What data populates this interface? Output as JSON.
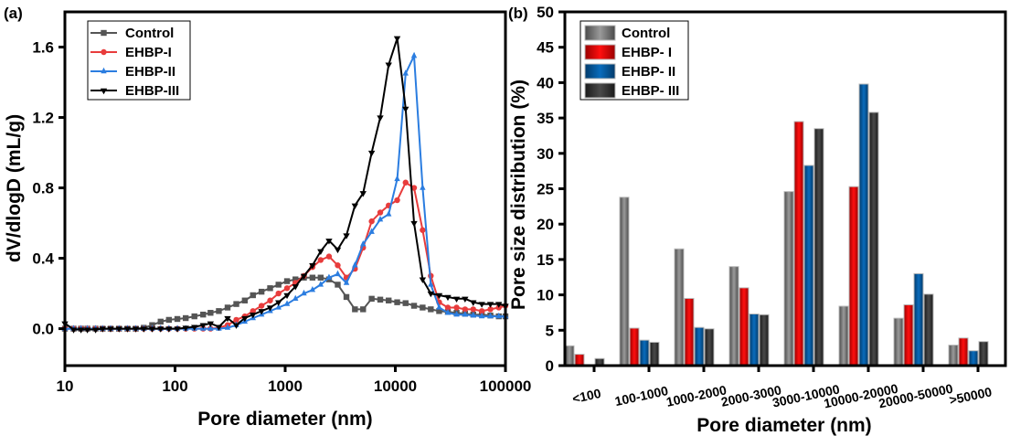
{
  "chart_data": [
    {
      "type": "line",
      "panel_label": "(a)",
      "xlabel": "Pore diameter (nm)",
      "ylabel": "dV/dlogD (mL/g)",
      "xscale": "log",
      "xlim": [
        10,
        100000
      ],
      "ylim": [
        -0.21,
        1.8
      ],
      "xticks": [
        10,
        100,
        1000,
        10000,
        100000
      ],
      "xtick_labels": [
        "10",
        "100",
        "1000",
        "10000",
        "100000"
      ],
      "yticks": [
        0.0,
        0.4,
        0.8,
        1.2,
        1.6
      ],
      "ytick_labels": [
        "0.0",
        "0.4",
        "0.8",
        "1.2",
        "1.6"
      ],
      "legend_position": "top-left",
      "series": [
        {
          "name": "Control",
          "color": "#555555",
          "marker": "square",
          "x": [
            10,
            12,
            14,
            16,
            19,
            22,
            26,
            31,
            37,
            44,
            52,
            62,
            74,
            88,
            105,
            125,
            150,
            180,
            210,
            250,
            300,
            360,
            430,
            510,
            610,
            730,
            870,
            1040,
            1240,
            1480,
            1770,
            2100,
            2500,
            3000,
            3600,
            4300,
            5100,
            6100,
            7300,
            8700,
            10400,
            12400,
            14800,
            17700,
            21000,
            25000,
            30000,
            36000,
            43000,
            51000,
            61000,
            73000,
            87000,
            100000
          ],
          "y": [
            0.0,
            0.0,
            0.0,
            0.0,
            0.0,
            0.0,
            0.0,
            0.0,
            0.0,
            0.0,
            0.005,
            0.02,
            0.04,
            0.05,
            0.055,
            0.06,
            0.07,
            0.08,
            0.09,
            0.1,
            0.12,
            0.14,
            0.16,
            0.19,
            0.21,
            0.23,
            0.25,
            0.27,
            0.28,
            0.29,
            0.29,
            0.29,
            0.28,
            0.25,
            0.18,
            0.11,
            0.11,
            0.17,
            0.165,
            0.16,
            0.15,
            0.145,
            0.13,
            0.12,
            0.11,
            0.1,
            0.095,
            0.09,
            0.085,
            0.08,
            0.08,
            0.075,
            0.07,
            0.07
          ]
        },
        {
          "name": "EHBP-I",
          "color": "#e83c3c",
          "marker": "circle",
          "x": [
            10,
            12,
            14,
            16,
            19,
            22,
            26,
            31,
            37,
            44,
            52,
            62,
            74,
            88,
            105,
            125,
            150,
            180,
            210,
            250,
            300,
            360,
            430,
            510,
            610,
            730,
            870,
            1040,
            1240,
            1480,
            1770,
            2100,
            2500,
            3000,
            3600,
            4300,
            5100,
            6100,
            7300,
            8700,
            10400,
            12400,
            14800,
            17700,
            21000,
            25000,
            30000,
            36000,
            43000,
            51000,
            61000,
            73000,
            87000,
            100000
          ],
          "y": [
            0.0,
            0.0,
            0.0,
            0.0,
            0.0,
            0.0,
            0.0,
            0.0,
            0.0,
            0.0,
            0.0,
            0.0,
            0.0,
            0.0,
            0.0,
            0.0,
            0.0,
            0.0,
            0.0,
            0.005,
            0.02,
            0.05,
            0.07,
            0.1,
            0.13,
            0.16,
            0.2,
            0.23,
            0.26,
            0.3,
            0.35,
            0.39,
            0.41,
            0.36,
            0.29,
            0.34,
            0.46,
            0.61,
            0.66,
            0.7,
            0.73,
            0.83,
            0.8,
            0.56,
            0.3,
            0.15,
            0.12,
            0.12,
            0.11,
            0.11,
            0.1,
            0.11,
            0.12,
            0.13
          ]
        },
        {
          "name": "EHBP-II",
          "color": "#2b7de0",
          "marker": "triangle-up",
          "x": [
            10,
            12,
            14,
            16,
            19,
            22,
            26,
            31,
            37,
            44,
            52,
            62,
            74,
            88,
            105,
            125,
            150,
            180,
            210,
            250,
            300,
            360,
            430,
            510,
            610,
            730,
            870,
            1040,
            1240,
            1480,
            1770,
            2100,
            2500,
            3000,
            3600,
            4300,
            5100,
            6100,
            7300,
            8700,
            10400,
            12400,
            14800,
            17700,
            21000,
            25000,
            30000,
            36000,
            43000,
            51000,
            61000,
            73000,
            87000,
            100000
          ],
          "y": [
            0.0,
            0.0,
            0.0,
            0.0,
            0.0,
            0.0,
            0.0,
            0.0,
            0.0,
            0.0,
            0.0,
            0.0,
            0.0,
            0.0,
            0.0,
            0.0,
            0.0,
            0.0,
            0.0,
            0.0,
            0.005,
            0.02,
            0.04,
            0.06,
            0.08,
            0.1,
            0.12,
            0.14,
            0.17,
            0.2,
            0.22,
            0.25,
            0.29,
            0.31,
            0.26,
            0.36,
            0.48,
            0.55,
            0.62,
            0.65,
            0.85,
            1.45,
            1.55,
            0.8,
            0.25,
            0.12,
            0.09,
            0.08,
            0.08,
            0.075,
            0.07,
            0.07,
            0.07,
            0.07
          ]
        },
        {
          "name": "EHBP-III",
          "color": "#000000",
          "marker": "triangle-down",
          "x": [
            10,
            12,
            14,
            16,
            19,
            22,
            26,
            31,
            37,
            44,
            52,
            62,
            74,
            88,
            105,
            125,
            150,
            180,
            210,
            250,
            300,
            360,
            430,
            510,
            610,
            730,
            870,
            1040,
            1240,
            1480,
            1770,
            2100,
            2500,
            3000,
            3600,
            4300,
            5100,
            6100,
            7300,
            8700,
            10400,
            12400,
            14800,
            17700,
            21000,
            25000,
            30000,
            36000,
            43000,
            51000,
            61000,
            73000,
            87000,
            100000
          ],
          "y": [
            0.03,
            -0.005,
            -0.005,
            -0.005,
            -0.005,
            0.0,
            0.0,
            0.0,
            0.0,
            0.0,
            0.0,
            0.0,
            0.0,
            0.0,
            0.0,
            0.005,
            0.01,
            0.02,
            0.03,
            0.01,
            0.06,
            0.02,
            0.06,
            0.08,
            0.1,
            0.12,
            0.15,
            0.19,
            0.24,
            0.3,
            0.36,
            0.44,
            0.5,
            0.45,
            0.53,
            0.7,
            0.77,
            1.0,
            1.2,
            1.5,
            1.65,
            1.25,
            0.6,
            0.28,
            0.2,
            0.19,
            0.18,
            0.17,
            0.17,
            0.15,
            0.14,
            0.14,
            0.14,
            0.13
          ]
        }
      ]
    },
    {
      "type": "bar",
      "panel_label": "(b)",
      "xlabel": "Pore diameter (nm)",
      "ylabel": "Pore size distribution (%)",
      "ylim": [
        0,
        50
      ],
      "yticks": [
        0,
        5,
        10,
        15,
        20,
        25,
        30,
        35,
        40,
        45,
        50
      ],
      "ytick_labels": [
        "0",
        "5",
        "10",
        "15",
        "20",
        "25",
        "30",
        "35",
        "40",
        "45",
        "50"
      ],
      "legend_position": "top-left",
      "categories": [
        "<100",
        "100-1000",
        "1000-2000",
        "2000-3000",
        "3000-10000",
        "10000-20000",
        "20000-50000",
        ">50000"
      ],
      "series": [
        {
          "name": "Control",
          "color": "#6e6e6e",
          "values": [
            2.8,
            23.8,
            16.5,
            14.0,
            24.6,
            8.4,
            6.7,
            2.9
          ]
        },
        {
          "name": "EHBP- I",
          "color": "#ff0000",
          "values": [
            1.6,
            5.3,
            9.5,
            11.0,
            34.5,
            25.3,
            8.6,
            3.9
          ]
        },
        {
          "name": "EHBP- II",
          "color": "#0860a8",
          "values": [
            0.0,
            3.6,
            5.4,
            7.3,
            28.3,
            39.8,
            13.0,
            2.1
          ]
        },
        {
          "name": "EHBP- III",
          "color": "#333333",
          "values": [
            1.0,
            3.3,
            5.2,
            7.2,
            33.5,
            35.8,
            10.1,
            3.4
          ]
        }
      ]
    }
  ]
}
